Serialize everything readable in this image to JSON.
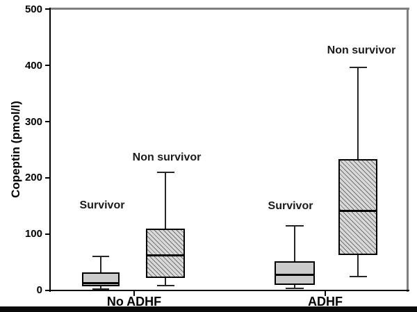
{
  "figure": {
    "background": "#ffffff",
    "frame_gray": "#7f7f7f",
    "axis_black": "#000000",
    "bottom_bar_color": "#0a0a0a",
    "solid_box_fill": "#cbcbcb",
    "hatched_box_base": "#d9d9d9"
  },
  "chart_data": {
    "type": "boxplot",
    "title": "",
    "ylabel": "Copeptin (pmol/l)",
    "xlabel": "",
    "ylim": [
      0,
      500
    ],
    "yticks": [
      0,
      100,
      200,
      300,
      400,
      500
    ],
    "categories": [
      "No ADHF",
      "ADHF"
    ],
    "grid": false,
    "legend_position": "none",
    "series": [
      {
        "group": "No ADHF",
        "name": "Survivor",
        "style": "solid",
        "whisker_low": 2,
        "q1": 7,
        "median": 12,
        "q3": 32,
        "whisker_high": 60
      },
      {
        "group": "No ADHF",
        "name": "Non survivor",
        "style": "hatched",
        "whisker_low": 8,
        "q1": 22,
        "median": 62,
        "q3": 110,
        "whisker_high": 210
      },
      {
        "group": "ADHF",
        "name": "Survivor",
        "style": "solid",
        "whisker_low": 3,
        "q1": 10,
        "median": 28,
        "q3": 52,
        "whisker_high": 114
      },
      {
        "group": "ADHF",
        "name": "Non survivor",
        "style": "hatched",
        "whisker_low": 24,
        "q1": 63,
        "median": 141,
        "q3": 233,
        "whisker_high": 397
      }
    ],
    "annotations": [
      {
        "text": "Survivor",
        "series_index": 0
      },
      {
        "text": "Non survivor",
        "series_index": 1
      },
      {
        "text": "Survivor",
        "series_index": 2
      },
      {
        "text": "Non survivor",
        "series_index": 3
      }
    ]
  }
}
